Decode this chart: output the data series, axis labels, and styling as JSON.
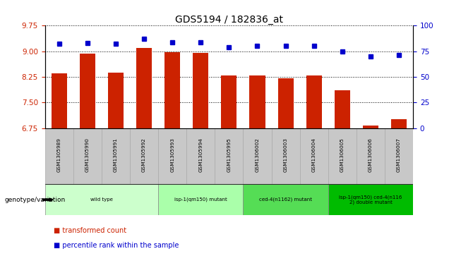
{
  "title": "GDS5194 / 182836_at",
  "samples": [
    "GSM1305989",
    "GSM1305990",
    "GSM1305991",
    "GSM1305992",
    "GSM1305993",
    "GSM1305994",
    "GSM1305995",
    "GSM1306002",
    "GSM1306003",
    "GSM1306004",
    "GSM1306005",
    "GSM1306006",
    "GSM1306007"
  ],
  "bar_values": [
    8.35,
    8.92,
    8.38,
    9.1,
    8.98,
    8.95,
    8.28,
    8.28,
    8.2,
    8.28,
    7.85,
    6.82,
    7.0
  ],
  "dot_values": [
    82,
    83,
    82,
    87,
    84,
    84,
    79,
    80,
    80,
    80,
    75,
    70,
    71
  ],
  "ylim_left": [
    6.75,
    9.75
  ],
  "ylim_right": [
    0,
    100
  ],
  "yticks_left": [
    6.75,
    7.5,
    8.25,
    9.0,
    9.75
  ],
  "yticks_right": [
    0,
    25,
    50,
    75,
    100
  ],
  "bar_color": "#CC2200",
  "dot_color": "#0000CC",
  "bg_color": "#FFFFFF",
  "groups": [
    {
      "label": "wild type",
      "indices": [
        0,
        1,
        2,
        3
      ],
      "color": "#CCFFCC"
    },
    {
      "label": "isp-1(qm150) mutant",
      "indices": [
        4,
        5,
        6
      ],
      "color": "#AAFFAA"
    },
    {
      "label": "ced-4(n1162) mutant",
      "indices": [
        7,
        8,
        9
      ],
      "color": "#55DD55"
    },
    {
      "label": "isp-1(qm150) ced-4(n116\n2) double mutant",
      "indices": [
        10,
        11,
        12
      ],
      "color": "#00BB00"
    }
  ],
  "genotype_label": "genotype/variation",
  "legend_bar": "transformed count",
  "legend_dot": "percentile rank within the sample",
  "tick_color_left": "#CC2200",
  "tick_color_right": "#0000CC",
  "sample_bg": "#C8C8C8",
  "sample_edge": "#AAAAAA"
}
